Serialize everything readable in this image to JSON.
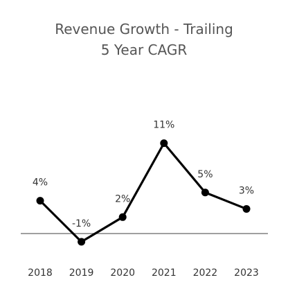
{
  "chart_data": {
    "type": "line",
    "title_lines": [
      "Revenue Growth - Trailing",
      "5 Year CAGR"
    ],
    "categories": [
      "2018",
      "2019",
      "2020",
      "2021",
      "2022",
      "2023"
    ],
    "values": [
      4,
      -1,
      2,
      11,
      5,
      3
    ],
    "data_labels": [
      "4%",
      "-1%",
      "2%",
      "11%",
      "5%",
      "3%"
    ],
    "xlabel": "",
    "ylabel": "",
    "ylim": [
      -1,
      11
    ],
    "grid": false,
    "legend": "none",
    "colors": {
      "line": "#000000",
      "marker": "#000000",
      "baseline": "#808080"
    }
  }
}
